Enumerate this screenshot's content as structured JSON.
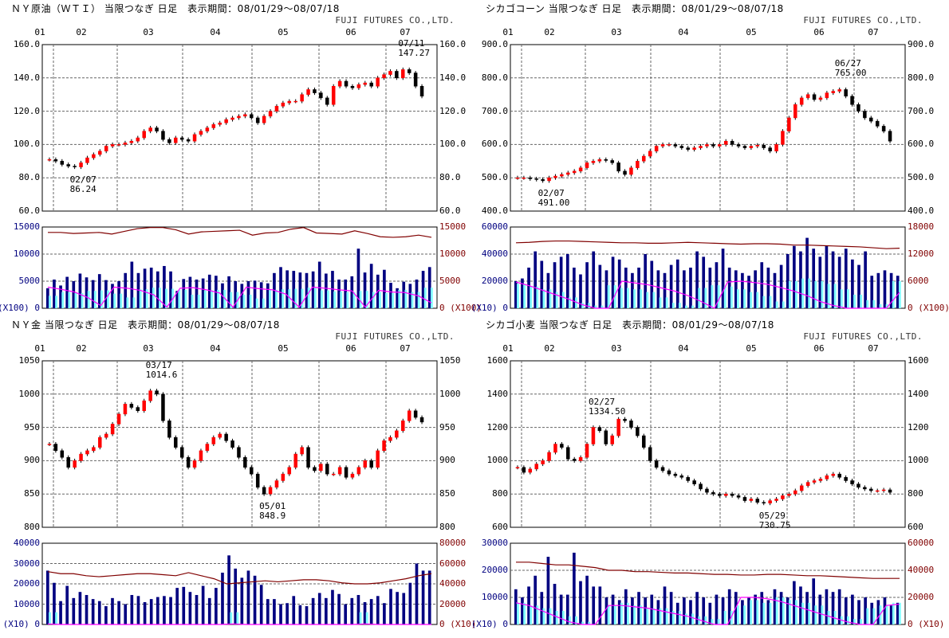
{
  "company": "FUJI FUTURES CO.,LTD.",
  "months": [
    "01",
    "02",
    "03",
    "04",
    "05",
    "06",
    "07"
  ],
  "colors": {
    "up": "#ff0000",
    "down": "#000000",
    "volume": "#000080",
    "front_volume": "#80ffff",
    "open_interest": "#800000",
    "front_open_interest": "#ff00ff",
    "grid": "#666666"
  },
  "chart_data": [
    {
      "type": "candlestick",
      "title": "ＮＹ原油（ＷＴＩ） 当限つなぎ 日足　表示期間：08/01/29～08/07/18",
      "price_ticks": [
        "60.0",
        "80.0",
        "100.0",
        "120.0",
        "140.0",
        "160.0"
      ],
      "ylim": [
        60,
        160
      ],
      "closes": [
        91,
        90,
        88,
        87,
        86.5,
        89,
        92,
        94,
        96,
        99,
        100,
        100,
        101,
        102,
        104,
        108,
        110,
        108,
        103,
        101,
        104,
        103,
        102,
        106,
        108,
        110,
        112,
        113,
        115,
        116,
        117,
        118,
        116,
        113,
        117,
        120,
        123,
        125,
        126,
        126,
        130,
        133,
        131,
        128,
        124,
        135,
        138,
        135,
        134,
        136,
        137,
        135,
        140,
        142,
        144,
        140,
        145,
        143,
        135,
        129
      ],
      "annotations": [
        {
          "date": "07/11",
          "value": "147.27",
          "at": 56,
          "pos": "above"
        },
        {
          "date": "02/07",
          "value": "86.24",
          "at": 4,
          "pos": "below"
        }
      ],
      "volume_ticks": [
        "0",
        "5000",
        "10000",
        "15000"
      ],
      "volume_ylim": [
        0,
        15000
      ],
      "oi_ticks": [
        "0",
        "5000",
        "10000",
        "15000"
      ],
      "oi_ylim": [
        0,
        15000
      ],
      "unit_left": "(X100)",
      "unit_right": "(X100)",
      "volume": [
        3700,
        5300,
        4200,
        5800,
        5000,
        6400,
        5700,
        5200,
        6300,
        5200,
        4500,
        5000,
        6500,
        8600,
        6500,
        7300,
        7500,
        6800,
        7800,
        6800,
        3200,
        5400,
        5800,
        5300,
        5500,
        6200,
        6000,
        4600,
        5900,
        5000,
        4500,
        5000,
        5100,
        4800,
        4600,
        6500,
        7600,
        7000,
        6900,
        6600,
        6500,
        6800,
        8600,
        6400,
        6900,
        5300,
        5300,
        5900,
        11000,
        6600,
        8200,
        6200,
        7100,
        4700,
        3700,
        4900,
        4500,
        5300,
        6900,
        7600
      ],
      "front_volume": [
        2300,
        3000,
        2800,
        3200,
        3300,
        2700,
        2000,
        3500,
        3800,
        3600,
        3400,
        2500,
        3300,
        3400,
        3000,
        2500,
        1800,
        3400,
        3500,
        3600,
        3800,
        3300,
        3100,
        3000,
        3200,
        3000,
        2800,
        3400,
        3000,
        3800
      ],
      "open_interest": [
        14000,
        14000,
        13800,
        13900,
        14000,
        13700,
        14200,
        14700,
        14900,
        14900,
        14500,
        13700,
        14100,
        14200,
        14300,
        14400,
        13500,
        13900,
        14000,
        14600,
        14900,
        13900,
        13800,
        13700,
        14300,
        13800,
        13200,
        13100,
        13200,
        13500,
        13100
      ],
      "front_open_interest": [
        3900,
        3500,
        3000,
        2000,
        500,
        3900,
        3700,
        3300,
        2500,
        200,
        3700,
        3800,
        3400,
        2800,
        200,
        3900,
        3600,
        3400,
        2600,
        200,
        3900,
        3700,
        3400,
        3200,
        200,
        3300,
        3000,
        2900,
        2300,
        1000
      ]
    },
    {
      "type": "candlestick",
      "title": "シカゴコーン 当限つなぎ 日足　表示期間：08/01/29～08/07/18",
      "price_ticks": [
        "400.0",
        "500.0",
        "600.0",
        "700.0",
        "800.0",
        "900.0"
      ],
      "ylim": [
        400,
        900
      ],
      "closes": [
        500,
        500,
        497,
        495,
        491,
        500,
        505,
        510,
        515,
        520,
        530,
        545,
        550,
        555,
        552,
        545,
        520,
        510,
        530,
        550,
        565,
        580,
        595,
        600,
        600,
        595,
        590,
        585,
        590,
        595,
        600,
        595,
        600,
        610,
        600,
        595,
        590,
        595,
        598,
        590,
        580,
        600,
        640,
        680,
        720,
        740,
        750,
        735,
        740,
        755,
        760,
        765,
        745,
        720,
        700,
        680,
        670,
        655,
        640,
        610
      ],
      "annotations": [
        {
          "date": "06/27",
          "value": "765.00",
          "at": 51,
          "pos": "above"
        },
        {
          "date": "02/07",
          "value": "491.00",
          "at": 4,
          "pos": "below"
        }
      ],
      "volume_ticks": [
        "0",
        "20000",
        "40000",
        "60000"
      ],
      "volume_ylim": [
        0,
        60000
      ],
      "oi_ticks": [
        "0",
        "6000",
        "12000",
        "18000"
      ],
      "oi_ylim": [
        0,
        18000
      ],
      "unit_left": "(X10)",
      "unit_right": "(X100)",
      "volume": [
        20000,
        22000,
        30000,
        42000,
        35000,
        26000,
        34000,
        38000,
        40000,
        30000,
        25000,
        34000,
        42000,
        32000,
        28000,
        38000,
        36000,
        30000,
        26000,
        30000,
        40000,
        35000,
        28000,
        26000,
        32000,
        36000,
        28000,
        30000,
        42000,
        38000,
        30000,
        34000,
        44000,
        30000,
        28000,
        26000,
        24000,
        28000,
        34000,
        30000,
        26000,
        32000,
        40000,
        46000,
        42000,
        52000,
        44000,
        38000,
        46000,
        42000,
        38000,
        44000,
        36000,
        32000,
        42000,
        24000,
        26000,
        28000,
        26000,
        24000
      ],
      "front_volume": [
        18000,
        16000,
        14000,
        12000,
        8000,
        4000,
        2000,
        17000,
        15000,
        14000,
        12000,
        8000,
        4000,
        2000,
        15000,
        17000,
        16000,
        14000,
        12000,
        9000,
        5000,
        20000,
        22000,
        20000,
        18000,
        14000,
        10000,
        6000,
        3000,
        20000
      ],
      "open_interest": [
        14500,
        14600,
        14800,
        14900,
        14900,
        14800,
        14700,
        14600,
        14500,
        14500,
        14400,
        14400,
        14500,
        14600,
        14500,
        14400,
        14300,
        14200,
        14300,
        14300,
        14200,
        14000,
        14000,
        13900,
        13800,
        13700,
        13600,
        13400,
        13200,
        13300
      ],
      "front_open_interest": [
        5800,
        5000,
        4000,
        3000,
        2000,
        800,
        0,
        0,
        6000,
        5600,
        5200,
        4500,
        3800,
        2800,
        1500,
        0,
        5800,
        6000,
        5700,
        5300,
        4600,
        3800,
        2800,
        1500,
        600,
        0,
        0,
        0,
        0,
        3500
      ]
    },
    {
      "type": "candlestick",
      "title": "ＮＹ金 当限つなぎ 日足　表示期間：08/01/29～08/07/18",
      "price_ticks": [
        "800",
        "850",
        "900",
        "950",
        "1000",
        "1050"
      ],
      "ylim": [
        800,
        1050
      ],
      "closes": [
        925,
        915,
        905,
        890,
        900,
        910,
        915,
        920,
        935,
        940,
        955,
        970,
        985,
        980,
        975,
        990,
        1005,
        1000,
        960,
        935,
        920,
        905,
        890,
        900,
        915,
        925,
        935,
        940,
        930,
        920,
        905,
        890,
        880,
        860,
        850,
        860,
        870,
        880,
        890,
        910,
        920,
        890,
        885,
        895,
        880,
        880,
        890,
        875,
        880,
        890,
        900,
        890,
        915,
        930,
        935,
        945,
        960,
        975,
        965,
        958
      ],
      "annotations": [
        {
          "date": "03/17",
          "value": "1014.6",
          "at": 16,
          "pos": "above"
        },
        {
          "date": "05/01",
          "value": "848.9",
          "at": 34,
          "pos": "below"
        }
      ],
      "volume_ticks": [
        "0",
        "10000",
        "20000",
        "30000",
        "40000"
      ],
      "volume_ylim": [
        0,
        40000
      ],
      "oi_ticks": [
        "0",
        "20000",
        "40000",
        "60000",
        "80000"
      ],
      "oi_ylim": [
        0,
        80000
      ],
      "unit_left": "(X10)",
      "unit_right": "(X10)",
      "volume": [
        26500,
        20500,
        11500,
        19000,
        13000,
        16000,
        14500,
        12500,
        11500,
        9000,
        13000,
        11500,
        10000,
        14500,
        14000,
        11000,
        12500,
        13500,
        14000,
        13500,
        18000,
        18500,
        16000,
        14500,
        19000,
        13000,
        18000,
        25500,
        34000,
        27500,
        23000,
        26500,
        24000,
        19500,
        12500,
        12500,
        10000,
        10500,
        14000,
        9500,
        9000,
        13000,
        15500,
        13000,
        17000,
        15000,
        10000,
        13000,
        14500,
        11000,
        12500,
        14000,
        10500,
        17500,
        16000,
        15500,
        20500,
        30000,
        26500,
        26500
      ],
      "front_volume": [
        6000,
        0,
        0,
        0,
        0,
        0,
        0,
        0,
        0,
        0,
        0,
        0,
        0,
        0,
        6000,
        0,
        0,
        0,
        0,
        0,
        0,
        0,
        0,
        0,
        6000,
        0,
        0,
        0,
        0,
        0
      ],
      "open_interest": [
        52000,
        50000,
        50000,
        48000,
        47000,
        48000,
        49000,
        50000,
        50000,
        49000,
        48000,
        51000,
        48000,
        45000,
        40000,
        41000,
        42000,
        43000,
        42000,
        43000,
        44000,
        44000,
        43000,
        41000,
        40000,
        40000,
        41000,
        43000,
        45000,
        48000,
        50000
      ],
      "front_open_interest": [
        500,
        0,
        0,
        0,
        0,
        0,
        0,
        0,
        0,
        0,
        0,
        0,
        0,
        0,
        500,
        0,
        0,
        0,
        0,
        0,
        0,
        0,
        0,
        0,
        500,
        0,
        0,
        0,
        0,
        0
      ]
    },
    {
      "type": "candlestick",
      "title": "シカゴ小麦 当限つなぎ 日足　表示期間：08/01/29～08/07/18",
      "price_ticks": [
        "600",
        "800",
        "1000",
        "1200",
        "1400",
        "1600"
      ],
      "ylim": [
        600,
        1600
      ],
      "closes": [
        960,
        930,
        950,
        980,
        1000,
        1050,
        1100,
        1080,
        1010,
        1000,
        1020,
        1100,
        1200,
        1180,
        1100,
        1150,
        1250,
        1240,
        1200,
        1150,
        1080,
        1000,
        960,
        940,
        920,
        910,
        900,
        880,
        860,
        830,
        810,
        800,
        790,
        800,
        790,
        780,
        760,
        770,
        750,
        745,
        760,
        770,
        790,
        800,
        820,
        850,
        870,
        880,
        890,
        910,
        920,
        900,
        880,
        860,
        840,
        830,
        820,
        820,
        825,
        810
      ],
      "annotations": [
        {
          "date": "02/27",
          "value": "1334.50",
          "at": 12,
          "pos": "above"
        },
        {
          "date": "05/29",
          "value": "730.75",
          "at": 39,
          "pos": "below"
        }
      ],
      "volume_ticks": [
        "0",
        "10000",
        "20000",
        "30000"
      ],
      "volume_ylim": [
        0,
        30000
      ],
      "oi_ticks": [
        "0",
        "20000",
        "40000",
        "60000"
      ],
      "oi_ylim": [
        0,
        60000
      ],
      "unit_left": "(X10)",
      "unit_right": "(X10)",
      "volume": [
        13000,
        10000,
        14000,
        18000,
        12000,
        25000,
        15000,
        11000,
        11000,
        26500,
        16000,
        18000,
        14000,
        14000,
        10000,
        11000,
        9000,
        13000,
        10000,
        12000,
        10000,
        11000,
        9000,
        14000,
        12000,
        8000,
        10000,
        9000,
        12000,
        10000,
        8000,
        11000,
        10000,
        13000,
        12000,
        9000,
        10000,
        11000,
        12000,
        9000,
        13000,
        12000,
        10000,
        16000,
        14000,
        12000,
        17000,
        11000,
        13000,
        12000,
        13000,
        10000,
        11000,
        9000,
        10000,
        8000,
        9000,
        10000,
        7000,
        8000
      ],
      "front_volume": [
        8000,
        7000,
        6000,
        5000,
        3000,
        1000,
        0,
        7000,
        8000,
        7000,
        6000,
        6000,
        5000,
        4000,
        3000,
        2000,
        5000,
        7000,
        9000,
        8000,
        10000,
        9000,
        8000,
        7000,
        5000,
        3000,
        2000,
        6000,
        7000,
        8000
      ],
      "open_interest": [
        46000,
        46000,
        45000,
        44000,
        44000,
        43000,
        42000,
        40000,
        40000,
        39000,
        39000,
        38500,
        38000,
        38000,
        37500,
        37000,
        37000,
        36500,
        36500,
        37000,
        37000,
        36500,
        36000,
        36000,
        35500,
        35000,
        34500,
        34000,
        34000,
        34000
      ],
      "front_open_interest": [
        16000,
        14000,
        10000,
        6000,
        2000,
        0,
        0,
        14000,
        14000,
        13000,
        12000,
        10000,
        8000,
        6000,
        3000,
        0,
        0,
        20000,
        20000,
        19000,
        17000,
        14000,
        11000,
        8000,
        5000,
        2000,
        0,
        0,
        14000,
        15000
      ]
    }
  ]
}
